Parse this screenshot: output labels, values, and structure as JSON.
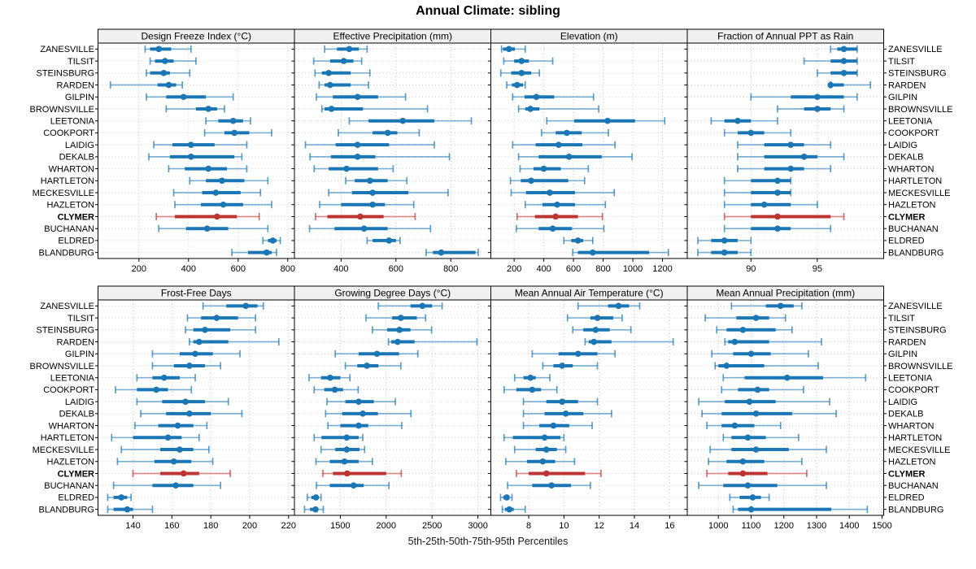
{
  "title": "Annual Climate: sibling",
  "caption": "5th-25th-50th-75th-95th Percentiles",
  "colors": {
    "main": "#1a76b4",
    "highlight": "#bd3532",
    "grid": "#c9c9c9",
    "row_grid": "#cfcfcf",
    "header_bg": "#f0f0f0",
    "border": "#000000",
    "text": "#000000"
  },
  "stations": [
    "ZANESVILLE",
    "TILSIT",
    "STEINSBURG",
    "RARDEN",
    "GILPIN",
    "BROWNSVILLE",
    "LEETONIA",
    "COOKPORT",
    "LAIDIG",
    "DEKALB",
    "WHARTON",
    "HARTLETON",
    "MECKESVILLE",
    "HAZLETON",
    "CLYMER",
    "BUCHANAN",
    "ELDRED",
    "BLANDBURG"
  ],
  "highlight_station": "CLYMER",
  "chart_data": {
    "type": "percentile-dotplot",
    "percentile_labels": [
      "5th",
      "25th",
      "50th",
      "75th",
      "95th"
    ],
    "grid": "dotted",
    "legend_position": "none",
    "panels": [
      {
        "title": "Design Freeze Index (°C)",
        "grid_row": 0,
        "grid_col": 0,
        "domain": [
          35,
          827
        ],
        "ticks": [
          200,
          400,
          600,
          800
        ],
        "values": [
          [
            225,
            245,
            280,
            330,
            410
          ],
          [
            245,
            265,
            305,
            340,
            430
          ],
          [
            230,
            245,
            300,
            325,
            405
          ],
          [
            85,
            275,
            320,
            350,
            375
          ],
          [
            230,
            310,
            380,
            470,
            580
          ],
          [
            310,
            430,
            480,
            515,
            545
          ],
          [
            470,
            520,
            580,
            620,
            650
          ],
          [
            465,
            545,
            585,
            645,
            735
          ],
          [
            260,
            335,
            410,
            505,
            635
          ],
          [
            240,
            325,
            410,
            585,
            615
          ],
          [
            320,
            385,
            480,
            555,
            635
          ],
          [
            405,
            470,
            535,
            625,
            720
          ],
          [
            340,
            455,
            510,
            610,
            690
          ],
          [
            345,
            450,
            540,
            620,
            735
          ],
          [
            270,
            345,
            515,
            595,
            685
          ],
          [
            280,
            390,
            475,
            560,
            720
          ],
          [
            700,
            720,
            740,
            755,
            770
          ],
          [
            575,
            640,
            715,
            735,
            755
          ]
        ]
      },
      {
        "title": "Effective Precipitation (mm)",
        "grid_row": 0,
        "grid_col": 1,
        "domain": [
          230,
          946
        ],
        "ticks": [
          400,
          600,
          800
        ],
        "values": [
          [
            340,
            385,
            430,
            465,
            495
          ],
          [
            300,
            360,
            410,
            445,
            475
          ],
          [
            305,
            330,
            355,
            435,
            505
          ],
          [
            320,
            340,
            360,
            435,
            500
          ],
          [
            310,
            370,
            460,
            535,
            635
          ],
          [
            330,
            340,
            365,
            480,
            715
          ],
          [
            430,
            500,
            625,
            740,
            875
          ],
          [
            390,
            515,
            570,
            605,
            685
          ],
          [
            270,
            380,
            460,
            575,
            740
          ],
          [
            287,
            363,
            460,
            525,
            795
          ],
          [
            302,
            355,
            420,
            535,
            590
          ],
          [
            417,
            450,
            505,
            570,
            640
          ],
          [
            355,
            440,
            515,
            645,
            790
          ],
          [
            322,
            400,
            515,
            560,
            665
          ],
          [
            307,
            350,
            470,
            555,
            670
          ],
          [
            285,
            376,
            484,
            570,
            726
          ],
          [
            495,
            515,
            575,
            600,
            615
          ],
          [
            710,
            735,
            765,
            890,
            900
          ]
        ]
      },
      {
        "title": "Elevation (m)",
        "grid_row": 0,
        "grid_col": 2,
        "domain": [
          43,
          1367
        ],
        "ticks": [
          200,
          400,
          600,
          800,
          1000,
          1200
        ],
        "values": [
          [
            115,
            125,
            165,
            205,
            275
          ],
          [
            130,
            200,
            250,
            300,
            460
          ],
          [
            110,
            180,
            250,
            315,
            370
          ],
          [
            150,
            185,
            220,
            260,
            275
          ],
          [
            190,
            270,
            350,
            470,
            735
          ],
          [
            230,
            275,
            310,
            370,
            770
          ],
          [
            420,
            605,
            830,
            1015,
            1215
          ],
          [
            385,
            480,
            555,
            655,
            835
          ],
          [
            190,
            345,
            500,
            660,
            880
          ],
          [
            230,
            365,
            570,
            790,
            995
          ],
          [
            240,
            330,
            400,
            515,
            700
          ],
          [
            175,
            245,
            315,
            565,
            675
          ],
          [
            180,
            280,
            440,
            610,
            875
          ],
          [
            275,
            390,
            490,
            610,
            815
          ],
          [
            220,
            340,
            480,
            630,
            795
          ],
          [
            215,
            365,
            460,
            590,
            805
          ],
          [
            535,
            585,
            630,
            665,
            730
          ],
          [
            595,
            630,
            730,
            1110,
            1240
          ]
        ]
      },
      {
        "title": "Fraction of Annual PPT as Rain",
        "grid_row": 0,
        "grid_col": 3,
        "domain": [
          85.2,
          100
        ],
        "ticks": [
          90,
          95
        ],
        "values": [
          [
            96,
            96.5,
            97,
            98,
            98
          ],
          [
            94,
            96,
            97,
            98,
            98
          ],
          [
            95,
            96,
            97,
            98,
            98
          ],
          [
            96,
            96,
            96,
            97,
            99
          ],
          [
            90,
            93,
            95,
            97,
            98
          ],
          [
            92,
            94,
            95,
            96,
            97
          ],
          [
            87,
            88,
            89,
            90,
            92
          ],
          [
            88,
            89,
            90,
            91,
            93
          ],
          [
            89,
            91,
            93,
            94,
            96
          ],
          [
            89,
            91,
            94,
            95,
            97
          ],
          [
            89,
            91,
            93,
            94,
            96
          ],
          [
            88,
            90,
            92,
            93,
            93
          ],
          [
            88,
            90,
            92,
            93,
            93
          ],
          [
            88,
            90,
            91,
            93,
            95
          ],
          [
            88,
            90,
            92,
            96,
            97
          ],
          [
            88,
            90,
            92,
            93,
            96
          ],
          [
            86,
            87,
            88,
            89,
            90
          ],
          [
            86,
            87,
            88,
            89,
            90
          ]
        ]
      },
      {
        "title": "Frost-Free Days",
        "grid_row": 1,
        "grid_col": 0,
        "domain": [
          122,
          223
        ],
        "ticks": [
          140,
          160,
          180,
          200,
          220
        ],
        "values": [
          [
            176,
            188,
            198,
            204,
            207
          ],
          [
            168,
            175,
            183,
            194,
            203
          ],
          [
            167,
            171,
            177,
            190,
            203
          ],
          [
            169,
            171,
            174,
            189,
            215
          ],
          [
            150,
            164,
            172,
            181,
            195
          ],
          [
            150,
            161,
            169,
            177,
            185
          ],
          [
            142,
            150,
            156,
            164,
            172
          ],
          [
            131,
            142,
            152,
            158,
            170
          ],
          [
            142,
            155,
            167,
            177,
            189
          ],
          [
            144,
            157,
            169,
            180,
            196
          ],
          [
            141,
            153,
            163,
            171,
            178
          ],
          [
            129,
            140,
            158,
            165,
            174
          ],
          [
            134,
            154,
            164,
            171,
            179
          ],
          [
            132,
            151,
            161,
            170,
            181
          ],
          [
            140,
            154,
            166,
            174,
            190
          ],
          [
            130,
            150,
            162,
            171,
            185
          ],
          [
            127,
            130,
            134,
            137,
            139
          ],
          [
            127,
            130,
            137,
            140,
            150
          ]
        ]
      },
      {
        "title": "Growing Degree Days (°C)",
        "grid_row": 1,
        "grid_col": 1,
        "domain": [
          1000,
          3141
        ],
        "ticks": [
          1500,
          2000,
          2500,
          3000
        ],
        "values": [
          [
            1915,
            2265,
            2395,
            2500,
            2610
          ],
          [
            1780,
            2065,
            2160,
            2335,
            2430
          ],
          [
            1850,
            2010,
            2145,
            2265,
            2495
          ],
          [
            2025,
            2055,
            2125,
            2310,
            2990
          ],
          [
            1445,
            1700,
            1900,
            2140,
            2345
          ],
          [
            1555,
            1685,
            1790,
            1915,
            2160
          ],
          [
            1160,
            1290,
            1390,
            1500,
            1605
          ],
          [
            1215,
            1325,
            1440,
            1530,
            1695
          ],
          [
            1355,
            1555,
            1700,
            1865,
            2100
          ],
          [
            1340,
            1520,
            1745,
            1910,
            2270
          ],
          [
            1365,
            1500,
            1700,
            1805,
            2170
          ],
          [
            1215,
            1295,
            1570,
            1700,
            1745
          ],
          [
            1290,
            1445,
            1570,
            1710,
            1765
          ],
          [
            1235,
            1385,
            1545,
            1700,
            1850
          ],
          [
            1310,
            1420,
            1575,
            2000,
            2165
          ],
          [
            1240,
            1385,
            1645,
            1755,
            2030
          ],
          [
            1140,
            1185,
            1235,
            1255,
            1290
          ],
          [
            1110,
            1170,
            1230,
            1260,
            1315
          ]
        ]
      },
      {
        "title": "Mean Annual Air Temperature (°C)",
        "grid_row": 1,
        "grid_col": 2,
        "domain": [
          5.85,
          17
        ],
        "ticks": [
          8,
          10,
          12,
          14,
          16
        ],
        "values": [
          [
            10.8,
            12.5,
            13.1,
            13.7,
            14.3
          ],
          [
            10.2,
            11.5,
            11.9,
            12.8,
            13.3
          ],
          [
            10.5,
            11.1,
            11.8,
            12.6,
            13.8
          ],
          [
            11.2,
            11.4,
            11.7,
            12.7,
            16.2
          ],
          [
            8.2,
            9.7,
            10.8,
            11.9,
            12.9
          ],
          [
            8.8,
            9.4,
            9.9,
            10.5,
            11.9
          ],
          [
            7.2,
            7.7,
            8.1,
            8.4,
            9.2
          ],
          [
            6.6,
            7.3,
            8.2,
            8.7,
            9.6
          ],
          [
            7.7,
            9.0,
            9.9,
            10.8,
            11.9
          ],
          [
            7.7,
            8.9,
            10.1,
            11.1,
            12.7
          ],
          [
            7.7,
            8.6,
            9.4,
            10.3,
            11.6
          ],
          [
            6.6,
            7.1,
            8.9,
            9.8,
            10.0
          ],
          [
            7.2,
            8.4,
            9.0,
            9.6,
            10.1
          ],
          [
            6.7,
            7.9,
            8.8,
            9.5,
            10.6
          ],
          [
            7.3,
            8.0,
            9.0,
            11.2,
            12.1
          ],
          [
            6.8,
            8.2,
            9.3,
            10.4,
            11.5
          ],
          [
            6.4,
            6.55,
            6.75,
            6.9,
            7.05
          ],
          [
            6.5,
            6.65,
            6.9,
            7.15,
            7.8
          ]
        ]
      },
      {
        "title": "Mean Annual Precipitation (mm)",
        "grid_row": 1,
        "grid_col": 3,
        "domain": [
          905,
          1505
        ],
        "ticks": [
          1000,
          1100,
          1200,
          1300,
          1400,
          1500
        ],
        "values": [
          [
            1040,
            1145,
            1190,
            1230,
            1255
          ],
          [
            960,
            1055,
            1115,
            1155,
            1205
          ],
          [
            995,
            1025,
            1075,
            1175,
            1225
          ],
          [
            1020,
            1030,
            1050,
            1155,
            1315
          ],
          [
            980,
            1045,
            1100,
            1160,
            1275
          ],
          [
            990,
            1000,
            1025,
            1140,
            1305
          ],
          [
            1015,
            1080,
            1210,
            1320,
            1450
          ],
          [
            1010,
            1060,
            1120,
            1155,
            1260
          ],
          [
            940,
            1020,
            1095,
            1175,
            1340
          ],
          [
            950,
            1010,
            1115,
            1225,
            1360
          ],
          [
            965,
            1010,
            1050,
            1110,
            1190
          ],
          [
            1015,
            1040,
            1090,
            1145,
            1245
          ],
          [
            975,
            1040,
            1115,
            1215,
            1330
          ],
          [
            970,
            1025,
            1075,
            1140,
            1255
          ],
          [
            965,
            1030,
            1075,
            1150,
            1270
          ],
          [
            940,
            1015,
            1090,
            1180,
            1330
          ],
          [
            1035,
            1065,
            1105,
            1130,
            1155
          ],
          [
            1045,
            1060,
            1100,
            1345,
            1455
          ]
        ]
      }
    ]
  }
}
